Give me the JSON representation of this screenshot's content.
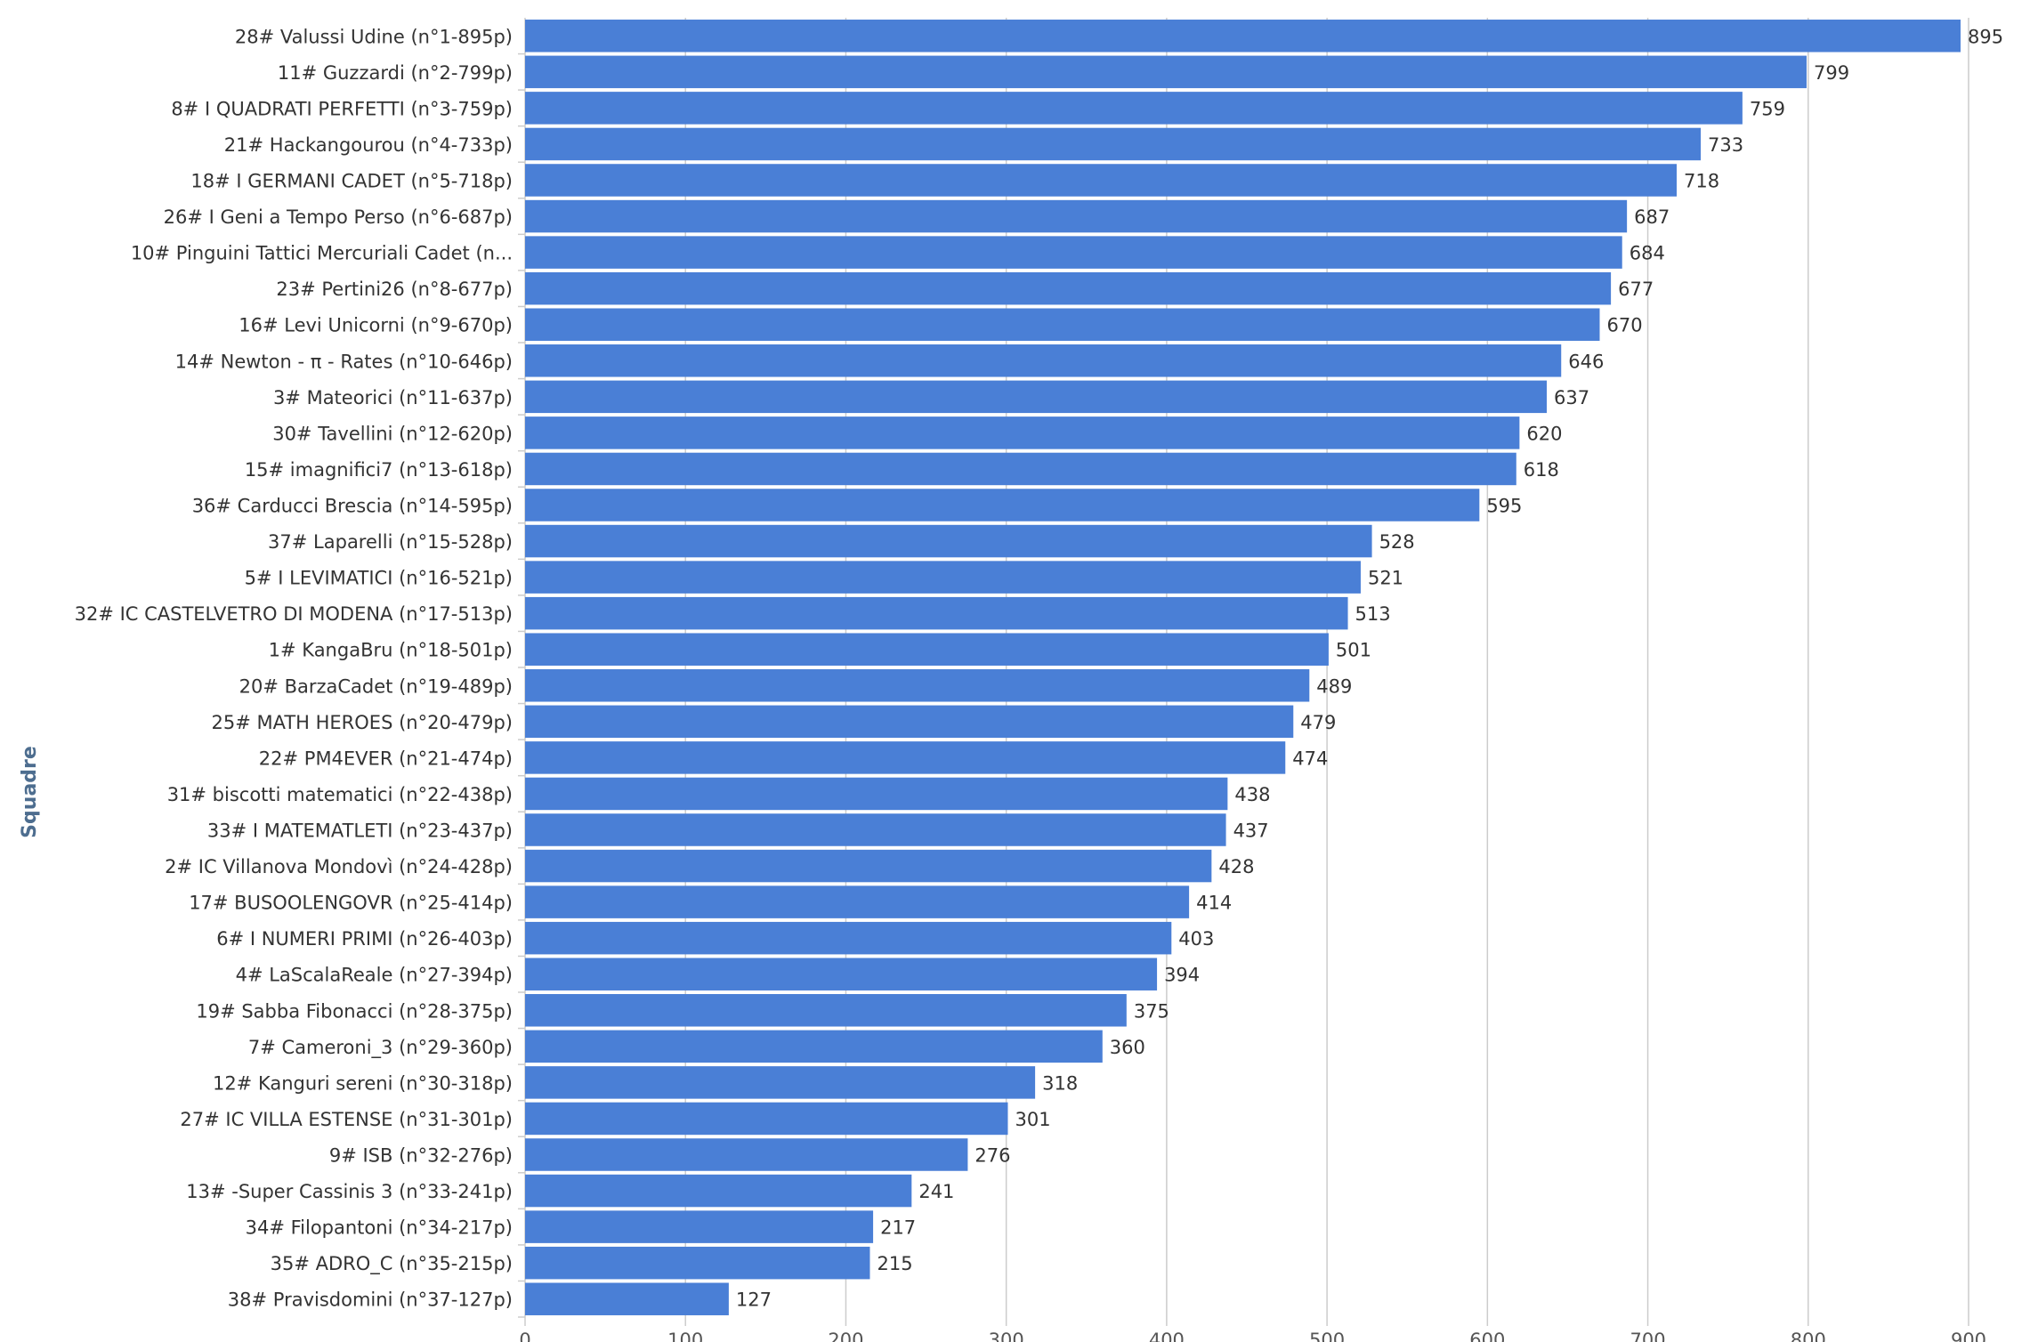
{
  "chart_data": {
    "type": "bar",
    "orientation": "horizontal",
    "title": "",
    "xlabel": "",
    "ylabel": "Squadre",
    "xlim": [
      0,
      900
    ],
    "x_ticks": [
      0,
      100,
      200,
      300,
      400,
      500,
      600,
      700,
      800,
      900
    ],
    "grid": true,
    "bar_color": "#4a7fd6",
    "categories": [
      "28# Valussi Udine (n°1-895p)",
      "11# Guzzardi (n°2-799p)",
      "8# I QUADRATI PERFETTI (n°3-759p)",
      "21# Hackangourou (n°4-733p)",
      "18# I GERMANI CADET (n°5-718p)",
      "26# I Geni a Tempo Perso (n°6-687p)",
      "10# Pinguini Tattici Mercuriali Cadet (n...",
      "23# Pertini26 (n°8-677p)",
      "16# Levi Unicorni (n°9-670p)",
      "14# Newton - π - Rates (n°10-646p)",
      "3# Mateorici (n°11-637p)",
      "30# Tavellini (n°12-620p)",
      "15# imagnifici7 (n°13-618p)",
      "36# Carducci Brescia (n°14-595p)",
      "37# Laparelli (n°15-528p)",
      "5# I LEVIMATICI (n°16-521p)",
      "32# IC CASTELVETRO DI MODENA (n°17-513p)",
      "1# KangaBru (n°18-501p)",
      "20# BarzaCadet (n°19-489p)",
      "25# MATH HEROES (n°20-479p)",
      "22# PM4EVER (n°21-474p)",
      "31# biscotti matematici (n°22-438p)",
      "33# I MATEMATLETI (n°23-437p)",
      "2# IC Villanova Mondovì (n°24-428p)",
      "17# BUSOOLENGOVR (n°25-414p)",
      "6# I NUMERI PRIMI (n°26-403p)",
      "4# LaScalaReale (n°27-394p)",
      "19# Sabba Fibonacci (n°28-375p)",
      "7# Cameroni_3 (n°29-360p)",
      "12# Kanguri sereni (n°30-318p)",
      "27# IC VILLA ESTENSE (n°31-301p)",
      "9# ISB (n°32-276p)",
      "13# -Super Cassinis 3 (n°33-241p)",
      "34# Filopantoni (n°34-217p)",
      "35# ADRO_C (n°35-215p)",
      "38# Pravisdomini (n°37-127p)"
    ],
    "values": [
      895,
      799,
      759,
      733,
      718,
      687,
      684,
      677,
      670,
      646,
      637,
      620,
      618,
      595,
      528,
      521,
      513,
      501,
      489,
      479,
      474,
      438,
      437,
      428,
      414,
      403,
      394,
      375,
      360,
      318,
      301,
      276,
      241,
      217,
      215,
      127
    ]
  }
}
